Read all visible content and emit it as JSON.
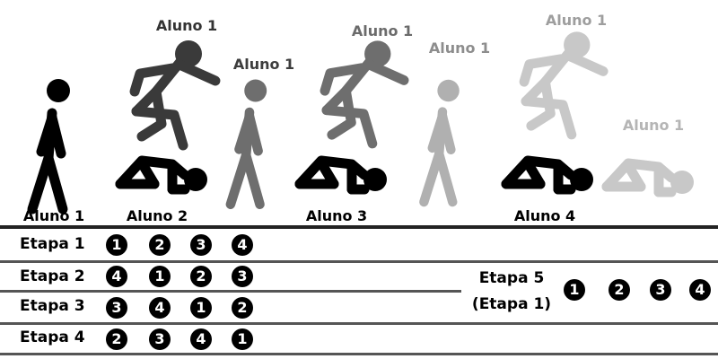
{
  "students": [
    {
      "label": "Aluno 1"
    },
    {
      "label": "Aluno 2"
    },
    {
      "label": "Aluno 3"
    },
    {
      "label": "Aluno 4"
    }
  ],
  "top_labels": [
    "Aluno 1",
    "Aluno 1",
    "Aluno 1",
    "Aluno 1",
    "Aluno 1",
    "Aluno 1"
  ],
  "stages": [
    {
      "label": "Etapa 1",
      "order": [
        "1",
        "2",
        "3",
        "4"
      ]
    },
    {
      "label": "Etapa 2",
      "order": [
        "4",
        "1",
        "2",
        "3"
      ]
    },
    {
      "label": "Etapa 3",
      "order": [
        "3",
        "4",
        "1",
        "2"
      ]
    },
    {
      "label": "Etapa 4",
      "order": [
        "2",
        "3",
        "4",
        "1"
      ]
    }
  ],
  "stage5": {
    "label": "Etapa 5",
    "sublabel": "(Etapa 1)",
    "order": [
      "1",
      "2",
      "3",
      "4"
    ]
  },
  "colors": {
    "figure_1": "#000000",
    "figure_2": "#3a3a3a",
    "figure_3": "#6e6e6e",
    "figure_4": "#8c8c8c",
    "figure_5": "#b0b0b0",
    "figure_6": "#c8c8c8"
  }
}
